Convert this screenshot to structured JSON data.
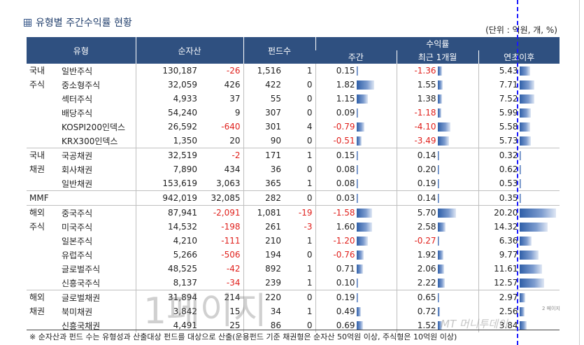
{
  "title": "유형별 주간수익률 현황",
  "unit": "(단위 : 억원, 개, %)",
  "headers": {
    "type": "유형",
    "net_assets": "순자산",
    "fund_count": "펀드수",
    "returns": "수익률",
    "weekly": "주간",
    "one_month": "최근 1개월",
    "ytd": "연초이후"
  },
  "groups": [
    {
      "name": "국내\n주식",
      "rows": [
        {
          "type": "일반주식",
          "assets": "130,187",
          "assets_chg": "-26",
          "funds": "1,516",
          "funds_chg": "1",
          "w": "0.15",
          "m": "-1.36",
          "y": "5.43"
        },
        {
          "type": "중소형주식",
          "assets": "32,059",
          "assets_chg": "426",
          "funds": "422",
          "funds_chg": "0",
          "w": "1.82",
          "m": "1.55",
          "y": "7.71"
        },
        {
          "type": "섹터주식",
          "assets": "4,933",
          "assets_chg": "37",
          "funds": "55",
          "funds_chg": "0",
          "w": "1.15",
          "m": "1.38",
          "y": "7.52"
        },
        {
          "type": "배당주식",
          "assets": "54,240",
          "assets_chg": "9",
          "funds": "307",
          "funds_chg": "0",
          "w": "0.09",
          "m": "-1.18",
          "y": "5.99"
        },
        {
          "type": "KOSPI200인덱스",
          "assets": "26,592",
          "assets_chg": "-640",
          "funds": "301",
          "funds_chg": "4",
          "w": "-0.79",
          "m": "-4.10",
          "y": "5.58"
        },
        {
          "type": "KRX300인덱스",
          "assets": "1,350",
          "assets_chg": "20",
          "funds": "90",
          "funds_chg": "0",
          "w": "-0.51",
          "m": "-3.49",
          "y": "5.73"
        }
      ]
    },
    {
      "name": "국내\n채권",
      "rows": [
        {
          "type": "국공채권",
          "assets": "32,519",
          "assets_chg": "-2",
          "funds": "171",
          "funds_chg": "1",
          "w": "0.15",
          "m": "0.14",
          "y": "0.32"
        },
        {
          "type": "회사채권",
          "assets": "7,890",
          "assets_chg": "434",
          "funds": "36",
          "funds_chg": "0",
          "w": "0.08",
          "m": "0.20",
          "y": "0.62"
        },
        {
          "type": "일반채권",
          "assets": "153,619",
          "assets_chg": "3,063",
          "funds": "365",
          "funds_chg": "1",
          "w": "0.08",
          "m": "0.19",
          "y": "0.53"
        }
      ]
    },
    {
      "name": "MMF",
      "rows": [
        {
          "type": "",
          "assets": "942,019",
          "assets_chg": "32,085",
          "funds": "282",
          "funds_chg": "0",
          "w": "0.03",
          "m": "0.14",
          "y": "0.35"
        }
      ]
    },
    {
      "name": "해외\n주식",
      "rows": [
        {
          "type": "중국주식",
          "assets": "87,941",
          "assets_chg": "-2,091",
          "funds": "1,081",
          "funds_chg": "-19",
          "w": "-1.58",
          "m": "5.70",
          "y": "20.20"
        },
        {
          "type": "미국주식",
          "assets": "14,532",
          "assets_chg": "-198",
          "funds": "261",
          "funds_chg": "-3",
          "w": "1.60",
          "m": "2.58",
          "y": "14.32"
        },
        {
          "type": "일본주식",
          "assets": "4,210",
          "assets_chg": "-111",
          "funds": "210",
          "funds_chg": "1",
          "w": "-1.20",
          "m": "-0.27",
          "y": "6.36"
        },
        {
          "type": "유럽주식",
          "assets": "5,266",
          "assets_chg": "-506",
          "funds": "194",
          "funds_chg": "0",
          "w": "-0.76",
          "m": "1.92",
          "y": "9.77"
        },
        {
          "type": "글로벌주식",
          "assets": "48,525",
          "assets_chg": "-42",
          "funds": "892",
          "funds_chg": "1",
          "w": "0.71",
          "m": "2.06",
          "y": "11.61"
        },
        {
          "type": "신흥국주식",
          "assets": "8,137",
          "assets_chg": "-34",
          "funds": "239",
          "funds_chg": "1",
          "w": "0.10",
          "m": "2.22",
          "y": "12.57"
        }
      ]
    },
    {
      "name": "해외\n채권",
      "rows": [
        {
          "type": "글로벌채권",
          "assets": "31,894",
          "assets_chg": "214",
          "funds": "220",
          "funds_chg": "0",
          "w": "0.19",
          "m": "0.65",
          "y": "2.97"
        },
        {
          "type": "북미채권",
          "assets": "3,842",
          "assets_chg": "15",
          "funds": "34",
          "funds_chg": "1",
          "w": "0.49",
          "m": "0.72",
          "y": "2.56"
        },
        {
          "type": "신흥국채권",
          "assets": "4,491",
          "assets_chg": "25",
          "funds": "86",
          "funds_chg": "0",
          "w": "0.69",
          "m": "1.52",
          "y": "3.84"
        }
      ]
    }
  ],
  "footnote": "※ 순자산과 펀드 수는 유형성과 산출대상 펀드를 대상으로 산출(운용펀드 기준 채권형은 순자산 50억원 이상, 주식형은 10억원 이상)",
  "watermark": "1페이지",
  "page_mark": "2 페이지",
  "logo": "MT 머니투데이"
}
